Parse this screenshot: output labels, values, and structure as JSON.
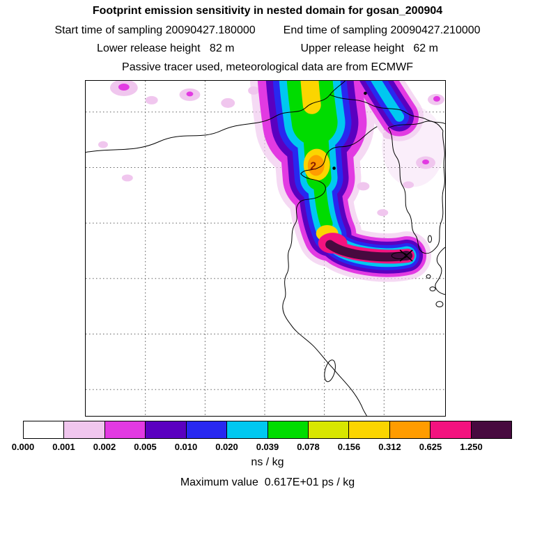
{
  "header": {
    "title": "Footprint emission sensitivity in nested domain for gosan_200904",
    "sampling_start": "Start time of sampling 20090427.180000",
    "sampling_end": "End time of sampling 20090427.210000",
    "lower_release": "Lower release height   82 m",
    "upper_release": "Upper release height   62 m",
    "tracer_line": "Passive tracer used, meteorological data are from ECMWF"
  },
  "footer": {
    "units": "ns / kg",
    "max_value_line": "Maximum value  0.617E+01 ps / kg"
  },
  "chart_data": {
    "type": "heatmap",
    "title": "Footprint emission sensitivity in nested domain for gosan_200904",
    "station": "gosan_200904",
    "sampling_start": "20090427.180000",
    "sampling_end": "20090427.210000",
    "lower_release_height_m": 82,
    "upper_release_height_m": 62,
    "tracer": "Passive tracer",
    "met_data": "ECMWF",
    "units": "ns / kg",
    "max_value": "0.617E+01 ps / kg",
    "colorbar": {
      "tick_labels": [
        "0.000",
        "0.001",
        "0.002",
        "0.005",
        "0.010",
        "0.020",
        "0.039",
        "0.078",
        "0.156",
        "0.312",
        "0.625",
        "1.250"
      ],
      "boundaries": [
        0.0,
        0.001,
        0.002,
        0.005,
        0.01,
        0.02,
        0.039,
        0.078,
        0.156,
        0.312,
        0.625,
        1.25
      ],
      "colors": [
        "#ffffff",
        "#f0c6ee",
        "#e23ae2",
        "#5a00c0",
        "#2828f0",
        "#00c8f0",
        "#00dc00",
        "#d8e600",
        "#fbd500",
        "#ff9c00",
        "#f3137f",
        "#470a3f"
      ]
    },
    "grid": {
      "style": "dashed",
      "vertical_lines": 5,
      "horizontal_lines": 6
    },
    "annotations": [
      {
        "text": "2",
        "color": "#8b1e00"
      }
    ],
    "receptor": {
      "marker": "x"
    }
  }
}
